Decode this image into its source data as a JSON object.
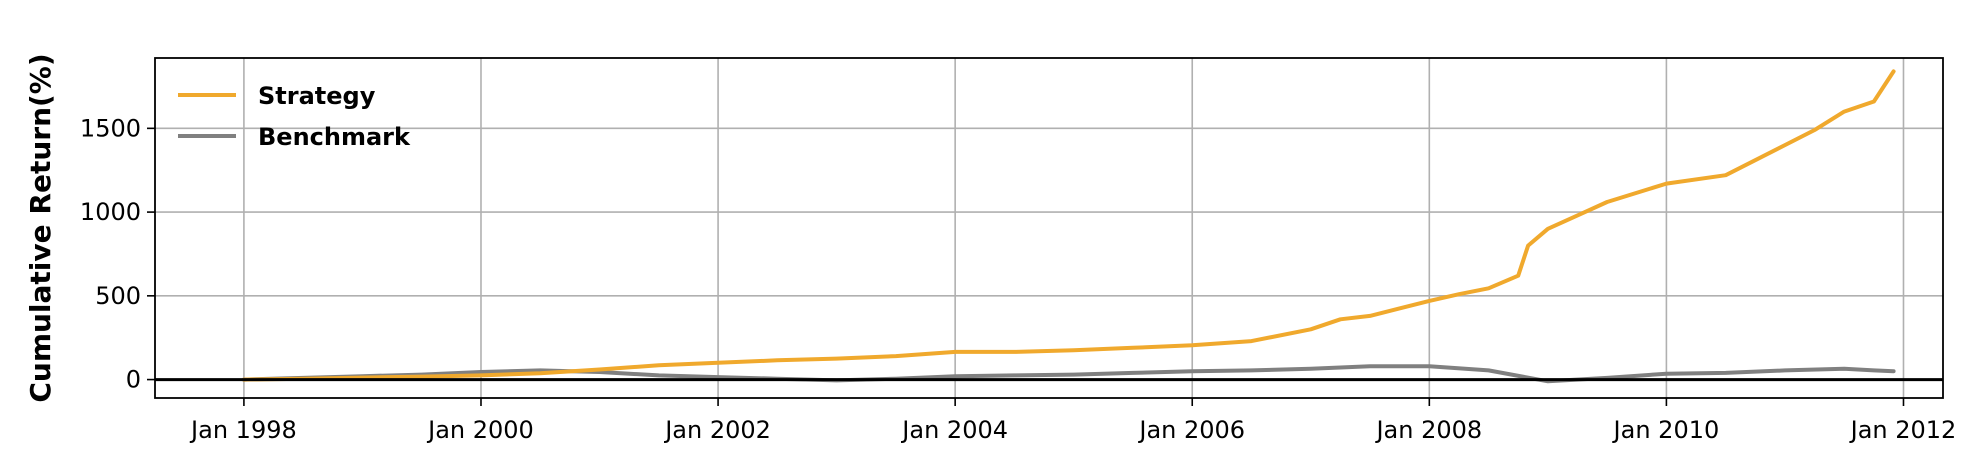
{
  "chart_data": {
    "type": "line",
    "title": "",
    "xlabel": "",
    "ylabel": "Cumulative Return(%)",
    "x_ticks": [
      "Jan 1998",
      "Jan 2000",
      "Jan 2002",
      "Jan 2004",
      "Jan 2006",
      "Jan 2008",
      "Jan 2010",
      "Jan 2012"
    ],
    "y_ticks": [
      0,
      500,
      1000,
      1500
    ],
    "xlim": [
      "1997-04",
      "2012-05"
    ],
    "ylim": [
      -110,
      1920
    ],
    "grid": true,
    "legend_position": "top-left",
    "zero_line": true,
    "series": [
      {
        "name": "Strategy",
        "color": "#f0a92d",
        "points": [
          [
            "1998-01",
            0
          ],
          [
            "1998-07",
            5
          ],
          [
            "1999-01",
            12
          ],
          [
            "1999-07",
            18
          ],
          [
            "2000-01",
            25
          ],
          [
            "2000-07",
            38
          ],
          [
            "2001-01",
            60
          ],
          [
            "2001-07",
            85
          ],
          [
            "2002-01",
            100
          ],
          [
            "2002-07",
            115
          ],
          [
            "2003-01",
            125
          ],
          [
            "2003-07",
            140
          ],
          [
            "2004-01",
            165
          ],
          [
            "2004-07",
            165
          ],
          [
            "2005-01",
            175
          ],
          [
            "2005-07",
            190
          ],
          [
            "2006-01",
            205
          ],
          [
            "2006-07",
            230
          ],
          [
            "2007-01",
            300
          ],
          [
            "2007-04",
            360
          ],
          [
            "2007-07",
            380
          ],
          [
            "2008-01",
            470
          ],
          [
            "2008-04",
            510
          ],
          [
            "2008-07",
            545
          ],
          [
            "2008-10",
            620
          ],
          [
            "2008-11",
            800
          ],
          [
            "2009-01",
            900
          ],
          [
            "2009-04",
            980
          ],
          [
            "2009-07",
            1060
          ],
          [
            "2010-01",
            1170
          ],
          [
            "2010-07",
            1220
          ],
          [
            "2011-01",
            1400
          ],
          [
            "2011-04",
            1490
          ],
          [
            "2011-07",
            1600
          ],
          [
            "2011-10",
            1660
          ],
          [
            "2011-12",
            1840
          ]
        ]
      },
      {
        "name": "Benchmark",
        "color": "#808080",
        "points": [
          [
            "1998-01",
            0
          ],
          [
            "1998-07",
            10
          ],
          [
            "1999-01",
            20
          ],
          [
            "1999-07",
            30
          ],
          [
            "2000-01",
            45
          ],
          [
            "2000-07",
            55
          ],
          [
            "2001-01",
            45
          ],
          [
            "2001-07",
            25
          ],
          [
            "2002-01",
            15
          ],
          [
            "2002-07",
            5
          ],
          [
            "2003-01",
            -5
          ],
          [
            "2003-07",
            5
          ],
          [
            "2004-01",
            20
          ],
          [
            "2004-07",
            25
          ],
          [
            "2005-01",
            30
          ],
          [
            "2005-07",
            40
          ],
          [
            "2006-01",
            50
          ],
          [
            "2006-07",
            55
          ],
          [
            "2007-01",
            65
          ],
          [
            "2007-07",
            80
          ],
          [
            "2008-01",
            80
          ],
          [
            "2008-07",
            55
          ],
          [
            "2009-01",
            -10
          ],
          [
            "2009-07",
            10
          ],
          [
            "2010-01",
            35
          ],
          [
            "2010-07",
            40
          ],
          [
            "2011-01",
            55
          ],
          [
            "2011-07",
            65
          ],
          [
            "2011-10",
            55
          ],
          [
            "2011-12",
            50
          ]
        ]
      }
    ]
  }
}
